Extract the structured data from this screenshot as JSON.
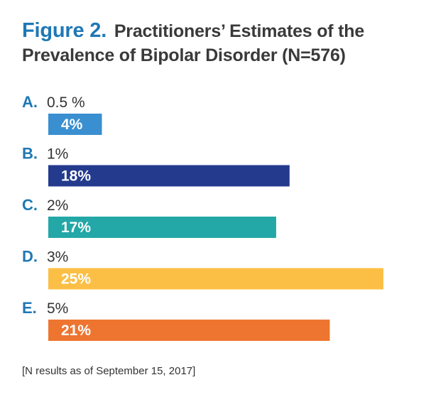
{
  "figure_label": "Figure 2.",
  "title": "Practitioners’ Estimates of the Prevalence of Bipolar Disorder (N=576)",
  "footnote": "[N results as of September 15, 2017]",
  "colors": {
    "letter": "#1f78b4",
    "title_text": "#3a3a3a",
    "bar_A": "#3a8fd0",
    "bar_B": "#233a8d",
    "bar_C": "#23a7a7",
    "bar_D": "#fcbf45",
    "bar_E": "#ee7530"
  },
  "chart_data": {
    "type": "bar",
    "orientation": "horizontal",
    "title": "Practitioners’ Estimates of the Prevalence of Bipolar Disorder (N=576)",
    "categories": [
      {
        "letter": "A.",
        "label": "0.5 %"
      },
      {
        "letter": "B.",
        "label": "1%"
      },
      {
        "letter": "C.",
        "label": "2%"
      },
      {
        "letter": "D.",
        "label": "3%"
      },
      {
        "letter": "E.",
        "label": "5%"
      }
    ],
    "values": [
      4,
      18,
      17,
      25,
      21
    ],
    "value_labels": [
      "4%",
      "18%",
      "17%",
      "25%",
      "21%"
    ],
    "bar_colors": [
      "#3a8fd0",
      "#233a8d",
      "#23a7a7",
      "#fcbf45",
      "#ee7530"
    ],
    "xlim": [
      0,
      25
    ],
    "grid": false,
    "legend": "none"
  }
}
